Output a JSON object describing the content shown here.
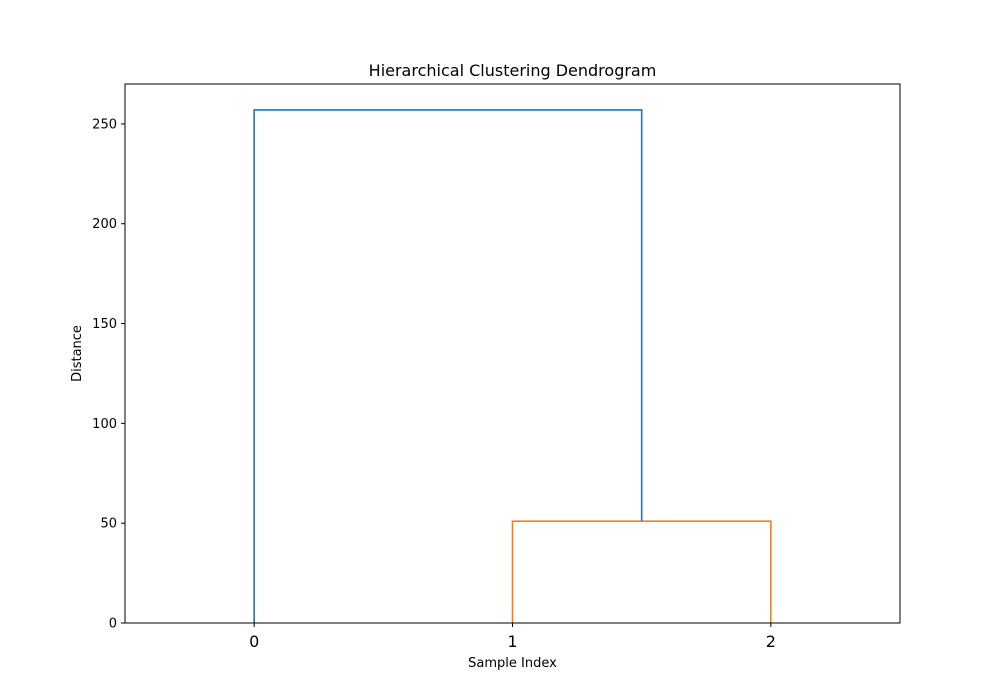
{
  "chart_data": {
    "type": "dendrogram",
    "title": "Hierarchical Clustering Dendrogram",
    "xlabel": "Sample Index",
    "ylabel": "Distance",
    "leaves": [
      "0",
      "1",
      "2"
    ],
    "leaf_positions": [
      0,
      1,
      2
    ],
    "xlim": [
      -0.5,
      2.5
    ],
    "ylim": [
      0,
      270
    ],
    "yticks": [
      0,
      50,
      100,
      150,
      200,
      250
    ],
    "grid": false,
    "links": [
      {
        "name": "link-1-2",
        "x": [
          1,
          1,
          2,
          2
        ],
        "y": [
          0,
          51,
          51,
          0
        ],
        "color": "#ff7f0e"
      },
      {
        "name": "link-0-root",
        "x": [
          0,
          0,
          1.5,
          1.5
        ],
        "y": [
          0,
          257,
          257,
          51
        ],
        "color": "#1f77b4"
      }
    ]
  }
}
